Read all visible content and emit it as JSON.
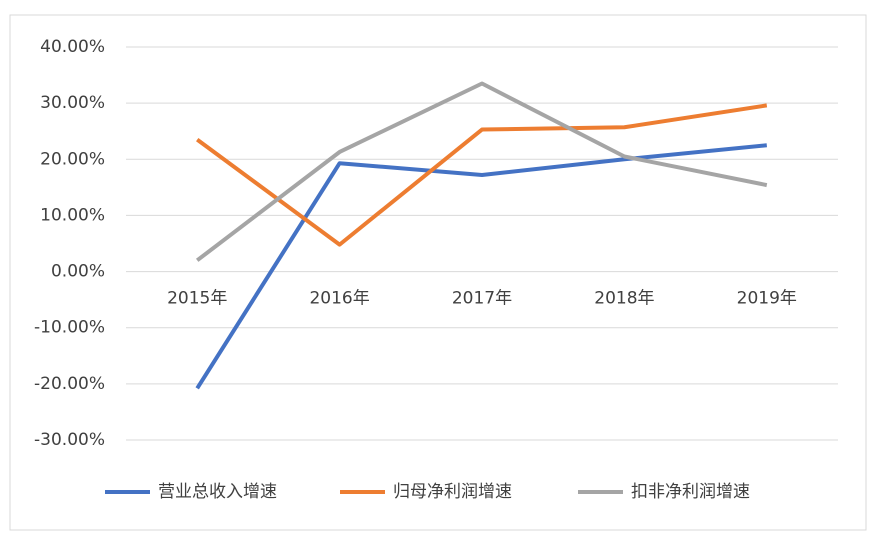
{
  "chart_data": {
    "type": "line",
    "categories": [
      "2015年",
      "2016年",
      "2017年",
      "2018年",
      "2019年"
    ],
    "series": [
      {
        "name": "营业总收入增速",
        "color": "#4472c4",
        "values": [
          -20.8,
          19.3,
          17.2,
          20.0,
          22.5
        ]
      },
      {
        "name": "归母净利润增速",
        "color": "#ed7d31",
        "values": [
          23.5,
          4.8,
          25.3,
          25.7,
          29.6
        ]
      },
      {
        "name": "扣非净利润增速",
        "color": "#a5a5a5",
        "values": [
          2.0,
          21.3,
          33.5,
          20.5,
          15.4
        ]
      }
    ],
    "ylim": [
      -30,
      40
    ],
    "yticks": [
      {
        "value": -30,
        "label": "-30.00%"
      },
      {
        "value": -20,
        "label": "-20.00%"
      },
      {
        "value": -10,
        "label": "-10.00%"
      },
      {
        "value": 0,
        "label": "0.00%"
      },
      {
        "value": 10,
        "label": "10.00%"
      },
      {
        "value": 20,
        "label": "20.00%"
      },
      {
        "value": 30,
        "label": "30.00%"
      },
      {
        "value": 40,
        "label": "40.00%"
      }
    ],
    "grid": true,
    "legend": "bottom"
  }
}
